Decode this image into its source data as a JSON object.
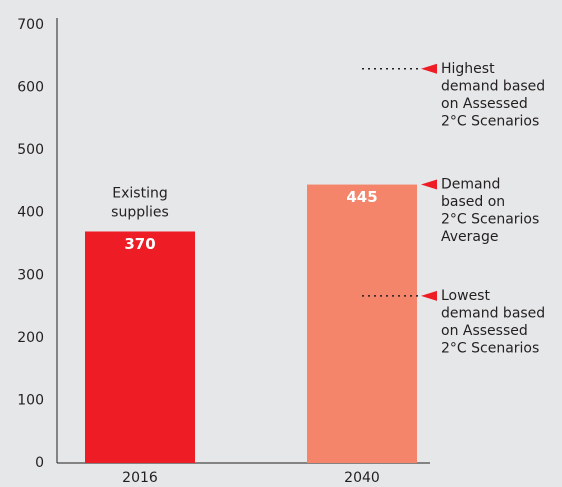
{
  "chart_data": {
    "type": "bar",
    "categories": [
      "2016",
      "2040"
    ],
    "values": [
      370,
      445
    ],
    "colors": [
      "#ee1c25",
      "#f4856a"
    ],
    "ylim": [
      0,
      700
    ],
    "yticks": [
      0,
      100,
      200,
      300,
      400,
      500,
      600,
      700
    ],
    "bar_caption": [
      "Existing",
      "supplies"
    ],
    "annotations": [
      {
        "value": 630,
        "dotted": true,
        "lines": [
          "Highest",
          "demand based",
          "on Assessed",
          "2°C Scenarios"
        ]
      },
      {
        "value": 445,
        "dotted": false,
        "lines": [
          "Demand",
          "based on",
          "2°C Scenarios",
          "Average"
        ]
      },
      {
        "value": 267,
        "dotted": true,
        "lines": [
          "Lowest",
          "demand based",
          "on Assessed",
          "2°C Scenarios"
        ]
      }
    ],
    "marker_color": "#ee1c25"
  }
}
